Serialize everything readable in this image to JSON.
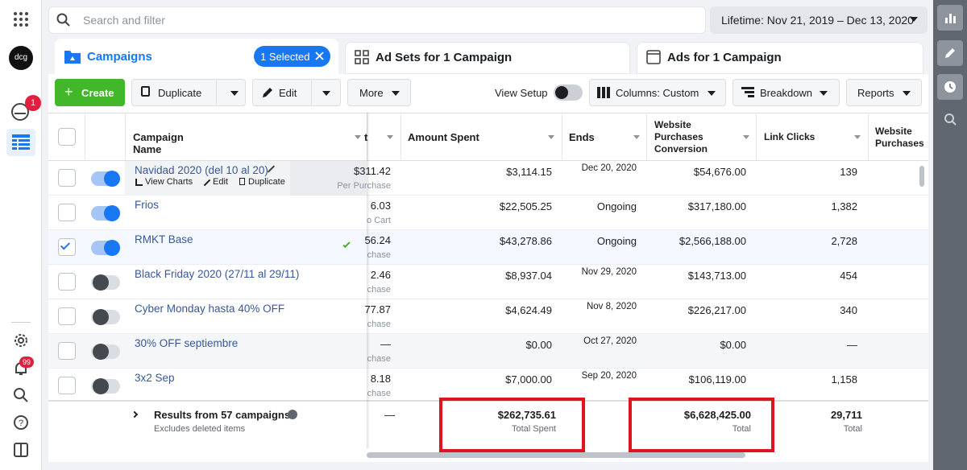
{
  "search_placeholder": "Search and filter",
  "date_range": "Lifetime: Nov 21, 2019 – Dec 13, 2020",
  "account": "dcg",
  "badges": {
    "notifications": "1",
    "alerts": "99"
  },
  "tabs": {
    "campaigns": "Campaigns",
    "selected": "1 Selected",
    "ad_sets": "Ad Sets for 1 Campaign",
    "ads": "Ads for 1 Campaign"
  },
  "toolbar": {
    "create": "Create",
    "duplicate": "Duplicate",
    "edit": "Edit",
    "more": "More",
    "view_setup": "View Setup",
    "columns": "Columns: Custom",
    "breakdown": "Breakdown",
    "reports": "Reports"
  },
  "table": {
    "headers": [
      "Campaign Name",
      "t",
      "Amount Spent",
      "Ends",
      "Website Purchases Conversion",
      "Link Clicks",
      "Website Purchases"
    ],
    "row_actions": [
      "View Charts",
      "Edit",
      "Duplicate"
    ],
    "rows": [
      {
        "name": "Navidad 2020 (del 10 al 20)",
        "active": true,
        "selected": false,
        "result": "$311.42",
        "result_type": "Per Purchase",
        "amount_spent": "$3,114.15",
        "ends": "Dec 20, 2020",
        "conversion": "$54,676.00",
        "link_clicks": "139"
      },
      {
        "name": "Frios",
        "active": true,
        "selected": false,
        "result": "6.03",
        "result_type": "o Cart",
        "amount_spent": "$22,505.25",
        "ends": "Ongoing",
        "conversion": "$317,180.00",
        "link_clicks": "1,382"
      },
      {
        "name": "RMKT Base",
        "active": true,
        "selected": true,
        "result": "56.24",
        "result_type": "chase",
        "amount_spent": "$43,278.86",
        "ends": "Ongoing",
        "conversion": "$2,566,188.00",
        "link_clicks": "2,728"
      },
      {
        "name": "Black Friday 2020 (27/11 al 29/11)",
        "active": false,
        "selected": false,
        "result": "2.46",
        "result_type": "chase",
        "amount_spent": "$8,937.04",
        "ends": "Nov 29, 2020",
        "conversion": "$143,713.00",
        "link_clicks": "454"
      },
      {
        "name": "Cyber Monday hasta 40% OFF",
        "active": false,
        "selected": false,
        "result": "77.87",
        "result_type": "chase",
        "amount_spent": "$4,624.49",
        "ends": "Nov 8, 2020",
        "conversion": "$226,217.00",
        "link_clicks": "340"
      },
      {
        "name": "30% OFF septiembre",
        "active": false,
        "selected": false,
        "result": "—",
        "result_type": "chase",
        "amount_spent": "$0.00",
        "ends": "Oct 27, 2020",
        "conversion": "$0.00",
        "link_clicks": "—"
      },
      {
        "name": "3x2 Sep",
        "active": false,
        "selected": false,
        "result": "8.18",
        "result_type": "chase",
        "amount_spent": "$7,000.00",
        "ends": "Sep 20, 2020",
        "conversion": "$106,119.00",
        "link_clicks": "1,158"
      }
    ],
    "footer": {
      "title": "Results from 57 campaigns",
      "note": "Excludes deleted items",
      "result": "—",
      "amount_spent": "$262,735.61",
      "amount_label": "Total Spent",
      "conversion": "$6,628,425.00",
      "conversion_label": "Total",
      "link_clicks": "29,711",
      "link_clicks_label": "Total"
    }
  }
}
